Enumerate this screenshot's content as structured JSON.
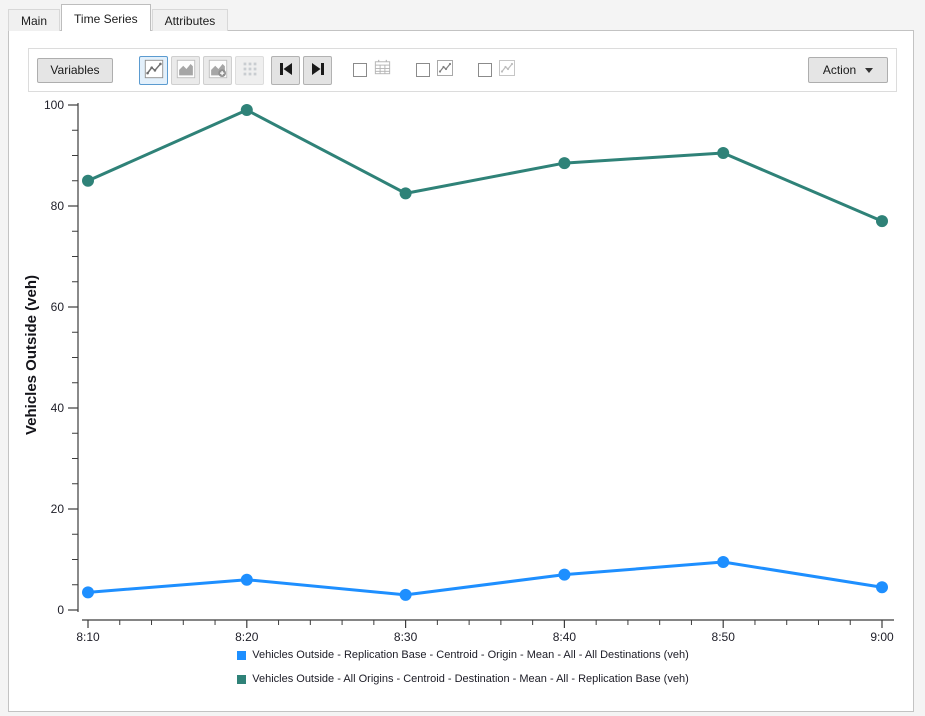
{
  "tabs": [
    {
      "label": "Main",
      "active": false
    },
    {
      "label": "Time Series",
      "active": true
    },
    {
      "label": "Attributes",
      "active": false
    }
  ],
  "toolbar": {
    "variables_label": "Variables",
    "view_modes": [
      {
        "icon": "line-chart-view-icon",
        "selected": true,
        "disabled": false
      },
      {
        "icon": "area-chart-view-icon",
        "selected": false,
        "disabled": true
      },
      {
        "icon": "area-chart-add-view-icon",
        "selected": false,
        "disabled": true
      },
      {
        "icon": "grid-view-icon",
        "selected": false,
        "disabled": true
      }
    ],
    "nav_buttons": [
      {
        "icon": "skip-first-icon"
      },
      {
        "icon": "skip-last-icon"
      }
    ],
    "checkboxes": [
      {
        "icon": "table-icon",
        "checked": false
      },
      {
        "icon": "line-chart-dark-icon",
        "checked": false
      },
      {
        "icon": "line-chart-light-icon",
        "checked": false
      }
    ],
    "action_label": "Action",
    "action_caret_icon": "chevron-down-icon"
  },
  "colors": {
    "series_blue": "#1e8fff",
    "series_green": "#2f8278",
    "selected_button_bg": "#e3f0fb",
    "selected_button_border": "#5b9bd0",
    "axis": "#3c3c3c",
    "tick_text": "#1e1e28",
    "panel_border": "#c3c3c3"
  },
  "chart_data": {
    "type": "line",
    "title": "",
    "xlabel": "",
    "ylabel": "Vehicles Outside (veh)",
    "x": [
      "8:10",
      "8:20",
      "8:30",
      "8:40",
      "8:50",
      "9:00"
    ],
    "series": [
      {
        "name": "Vehicles Outside - Replication Base - Centroid - Origin - Mean - All - All Destinations (veh)",
        "color": "#1e8fff",
        "values": [
          3.5,
          6,
          3,
          7,
          9.5,
          4.5
        ]
      },
      {
        "name": "Vehicles Outside - All Origins - Centroid - Destination - Mean - All - Replication Base (veh)",
        "color": "#2f8278",
        "values": [
          85,
          99,
          82.5,
          88.5,
          90.5,
          77
        ]
      }
    ],
    "ylim": [
      0,
      100
    ],
    "yticks": [
      0,
      20,
      40,
      60,
      80,
      100
    ],
    "y_minor_step": 5,
    "x_minor_per_interval": 5,
    "grid": false,
    "legend_position": "bottom",
    "markers": true
  }
}
